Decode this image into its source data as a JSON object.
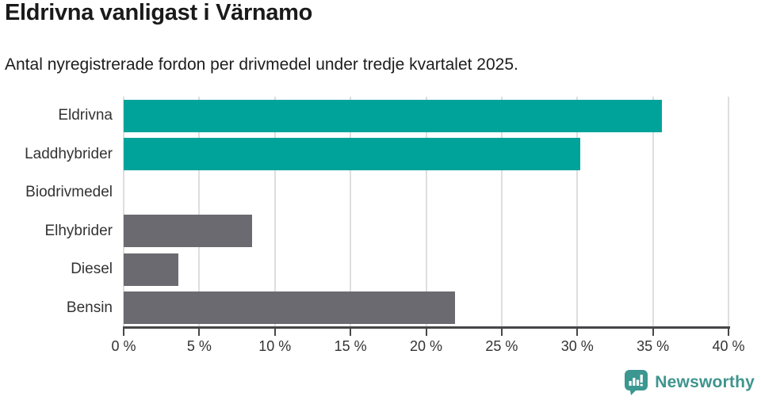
{
  "chart_data": {
    "type": "bar",
    "orientation": "horizontal",
    "title": "Eldrivna vanligast i Värnamo",
    "subtitle": "Antal nyregistrerade fordon per drivmedel under tredje kvartalet 2025.",
    "categories": [
      "Eldrivna",
      "Laddhybrider",
      "Biodrivmedel",
      "Elhybrider",
      "Diesel",
      "Bensin"
    ],
    "values": [
      35.6,
      30.2,
      0,
      8.5,
      3.6,
      21.9
    ],
    "unit": "%",
    "xlim": [
      0,
      40
    ],
    "x_ticks": [
      "0 %",
      "5 %",
      "10 %",
      "15 %",
      "20 %",
      "25 %",
      "30 %",
      "35 %",
      "40 %"
    ],
    "x_tick_values": [
      0,
      5,
      10,
      15,
      20,
      25,
      30,
      35,
      40
    ],
    "bar_colors": [
      "#00a39a",
      "#00a39a",
      "#6b6a71",
      "#6b6a71",
      "#6b6a71",
      "#6b6a71"
    ],
    "grid": true,
    "legend": "none"
  },
  "colors": {
    "accent_teal": "#00a39a",
    "neutral_gray": "#6b6a71",
    "gridline": "#dedede",
    "axis": "#47474a",
    "title_text": "#1a1a1a",
    "label_text": "#333333",
    "logo_teal": "#3f948e"
  },
  "branding": {
    "logo_text": "Newsworthy"
  }
}
